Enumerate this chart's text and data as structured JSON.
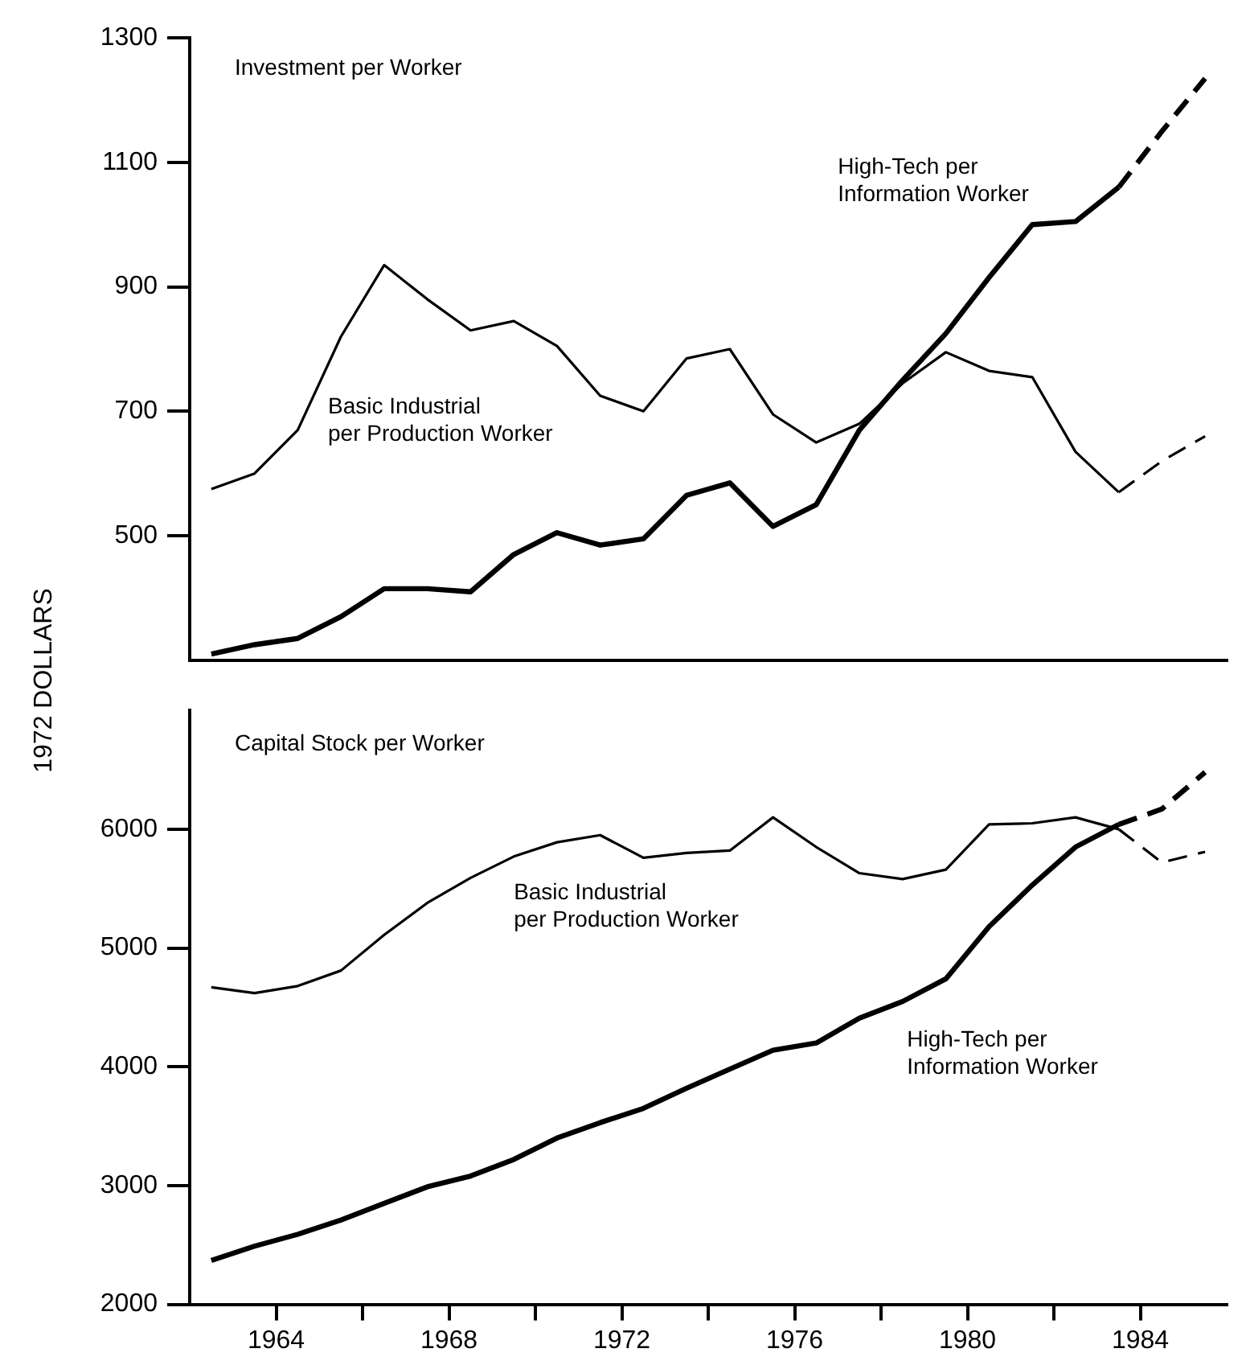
{
  "chart_data": [
    {
      "type": "line",
      "title": "Investment per Worker",
      "ylabel": "1972 DOLLARS",
      "xlim": [
        1962,
        1986
      ],
      "ylim": [
        300,
        1300
      ],
      "yticks": [
        500,
        700,
        900,
        1100,
        1300
      ],
      "tick_labels": "y",
      "series": [
        {
          "name": "High-Tech per Information Worker",
          "color": "#000000",
          "x": [
            1962.5,
            1963.5,
            1964.5,
            1965.5,
            1966.5,
            1967.5,
            1968.5,
            1969.5,
            1970.5,
            1971.5,
            1972.5,
            1973.5,
            1974.5,
            1975.5,
            1976.5,
            1977.5,
            1978.5,
            1979.5,
            1980.5,
            1981.5,
            1982.5,
            1983.5
          ],
          "values": [
            310,
            325,
            335,
            370,
            415,
            415,
            410,
            470,
            505,
            485,
            495,
            565,
            585,
            515,
            550,
            670,
            750,
            825,
            915,
            1000,
            1005,
            1060
          ]
        },
        {
          "color": "#000000",
          "line_style": "dashed",
          "x": [
            1983.5,
            1984.5,
            1985.5
          ],
          "values": [
            1060,
            1150,
            1235
          ]
        },
        {
          "name": "Basic Industrial per Production Worker",
          "color": "#000000",
          "x": [
            1962.5,
            1963.5,
            1964.5,
            1965.5,
            1966.5,
            1967.5,
            1968.5,
            1969.5,
            1970.5,
            1971.5,
            1972.5,
            1973.5,
            1974.5,
            1975.5,
            1976.5,
            1977.5,
            1978.5,
            1979.5,
            1980.5,
            1981.5,
            1982.5,
            1983.5
          ],
          "values": [
            575,
            600,
            670,
            820,
            935,
            880,
            830,
            845,
            805,
            725,
            700,
            785,
            800,
            695,
            650,
            680,
            745,
            795,
            765,
            755,
            635,
            570
          ]
        },
        {
          "color": "#000000",
          "line_style": "dashed",
          "x": [
            1983.5,
            1984.5,
            1985.5
          ],
          "values": [
            570,
            620,
            660
          ]
        }
      ]
    },
    {
      "type": "line",
      "title": "Capital Stock per Worker",
      "xlim": [
        1962,
        1986
      ],
      "ylim": [
        2000,
        7000
      ],
      "yticks": [
        2000,
        3000,
        4000,
        5000,
        6000
      ],
      "xticks": [
        1964,
        {
          "value": 1966,
          "label": null
        },
        1968,
        {
          "value": 1970,
          "label": null
        },
        1972,
        {
          "value": 1974,
          "label": null
        },
        1976,
        {
          "value": 1978,
          "label": null
        },
        1980,
        {
          "value": 1982,
          "label": null
        },
        1984
      ],
      "series": [
        {
          "name": "High-Tech per Information Worker",
          "color": "#000000",
          "x": [
            1962.5,
            1963.5,
            1964.5,
            1965.5,
            1966.5,
            1967.5,
            1968.5,
            1969.5,
            1970.5,
            1971.5,
            1972.5,
            1973.5,
            1974.5,
            1975.5,
            1976.5,
            1977.5,
            1978.5,
            1979.5,
            1980.5,
            1981.5,
            1982.5,
            1983.5
          ],
          "values": [
            2370,
            2490,
            2590,
            2710,
            2850,
            2990,
            3080,
            3220,
            3400,
            3530,
            3650,
            3820,
            3980,
            4140,
            4200,
            4410,
            4550,
            4740,
            5180,
            5530,
            5850,
            6040
          ]
        },
        {
          "color": "#000000",
          "line_style": "dashed",
          "x": [
            1983.5,
            1984.5,
            1985.5
          ],
          "values": [
            6040,
            6170,
            6480
          ]
        },
        {
          "name": "Basic Industrial per Production Worker",
          "color": "#000000",
          "x": [
            1962.5,
            1963.5,
            1964.5,
            1965.5,
            1966.5,
            1967.5,
            1968.5,
            1969.5,
            1970.5,
            1971.5,
            1972.5,
            1973.5,
            1974.5,
            1975.5,
            1976.5,
            1977.5,
            1978.5,
            1979.5,
            1980.5,
            1981.5,
            1982.5,
            1983.5
          ],
          "values": [
            4670,
            4620,
            4680,
            4810,
            5110,
            5380,
            5590,
            5770,
            5890,
            5950,
            5760,
            5800,
            5820,
            6100,
            5850,
            5630,
            5580,
            5660,
            6040,
            6050,
            6100,
            6000
          ]
        },
        {
          "color": "#000000",
          "line_style": "dashed",
          "x": [
            1983.5,
            1984.5,
            1985.5
          ],
          "values": [
            6000,
            5720,
            5810
          ]
        }
      ]
    }
  ]
}
